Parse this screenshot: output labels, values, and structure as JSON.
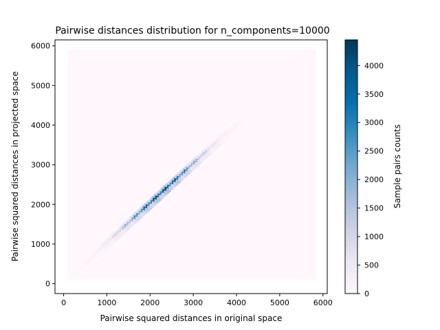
{
  "chart_data": {
    "type": "heatmap",
    "subtype": "hexbin",
    "title": "Pairwise distances distribution for n_components=10000",
    "xlabel": "Pairwise squared distances in original space",
    "ylabel": "Pairwise squared distances in projected space",
    "xlim": [
      -200,
      6100
    ],
    "ylim": [
      -250,
      6150
    ],
    "xticks": [
      0,
      1000,
      2000,
      3000,
      4000,
      5000,
      6000
    ],
    "yticks": [
      0,
      1000,
      2000,
      3000,
      4000,
      5000,
      6000
    ],
    "background_bins_extent": {
      "x": [
        100,
        5850
      ],
      "y": [
        100,
        5900
      ]
    },
    "diagonal_band": {
      "x_start": 250,
      "x_end": 4300,
      "peak_x": 2300,
      "peak_count": 4450
    },
    "colormap": [
      "#fff7fb",
      "#ece7f2",
      "#d0d1e6",
      "#a6bddb",
      "#74a9cf",
      "#3690c0",
      "#0570b0",
      "#045a8d",
      "#023858"
    ],
    "colorbar": {
      "label": "Sample pairs counts",
      "min": 0,
      "max": 4450,
      "ticks": [
        0,
        500,
        1000,
        1500,
        2000,
        2500,
        3000,
        3500,
        4000
      ]
    }
  }
}
